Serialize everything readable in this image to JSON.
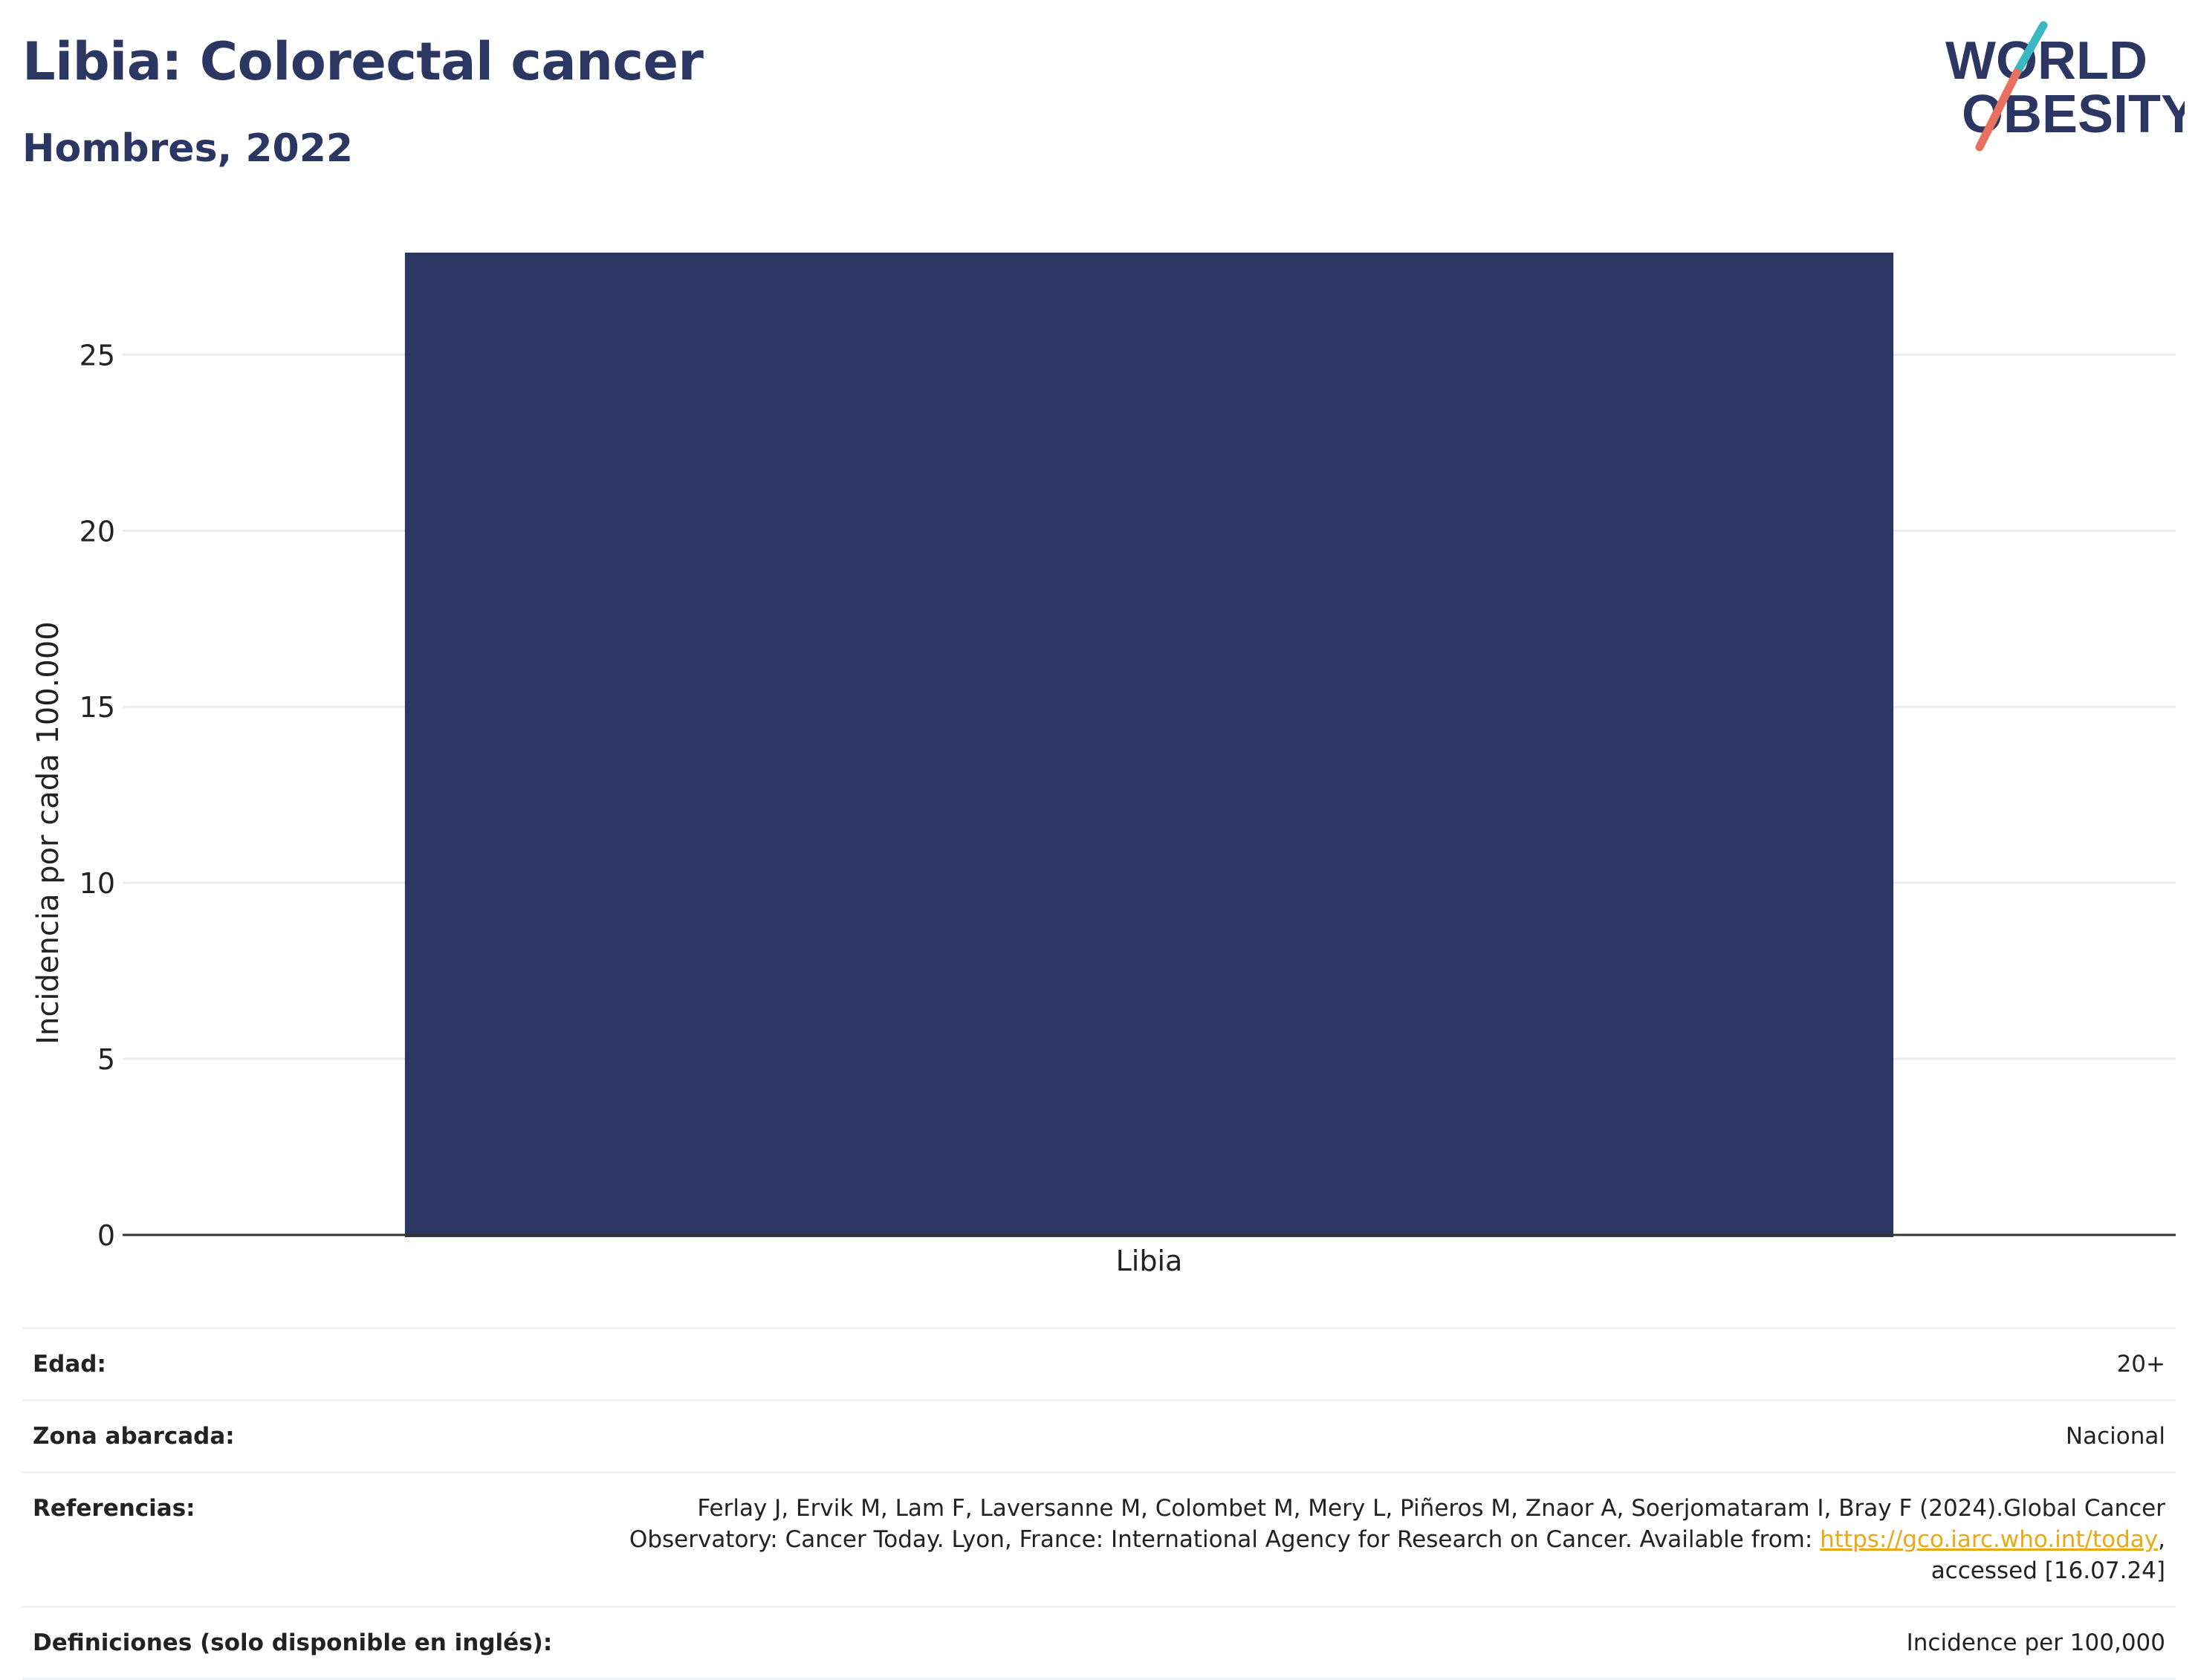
{
  "header": {
    "title": "Libia: Colorectal cancer",
    "subtitle": "Hombres, 2022"
  },
  "logo": {
    "line1": "WORLD",
    "line2": "OBESITY",
    "colors": {
      "text": "#2b3663",
      "slash_top": "#3bb8c1",
      "slash_bottom": "#e8705f"
    }
  },
  "chart_data": {
    "type": "bar",
    "categories": [
      "Libia"
    ],
    "values": [
      27.9
    ],
    "title": "",
    "xlabel": "",
    "ylabel": "Incidencia por cada 100.000",
    "ylim": [
      0,
      27.9
    ],
    "yticks": [
      0,
      5,
      10,
      15,
      20,
      25
    ],
    "grid": true,
    "bar_color": "#2b3663"
  },
  "meta": {
    "rows": [
      {
        "label": "Edad:",
        "value": "20+"
      },
      {
        "label": "Zona abarcada:",
        "value": "Nacional"
      },
      {
        "label": "Referencias:",
        "value_line1": "Ferlay J, Ervik M, Lam F, Laversanne M, Colombet M, Mery L, Piñeros M, Znaor A, Soerjomataram I, Bray F (2024).Global Cancer",
        "value_line2_pre": "Observatory: Cancer Today. Lyon, France: International Agency for Research on Cancer. Available from: ",
        "link": "https://gco.iarc.who.int/today",
        "value_line2_post": ",",
        "value_line3": "accessed [16.07.24]"
      },
      {
        "label": "Definiciones (solo disponible en inglés):",
        "value": "Incidence per 100,000"
      }
    ]
  }
}
